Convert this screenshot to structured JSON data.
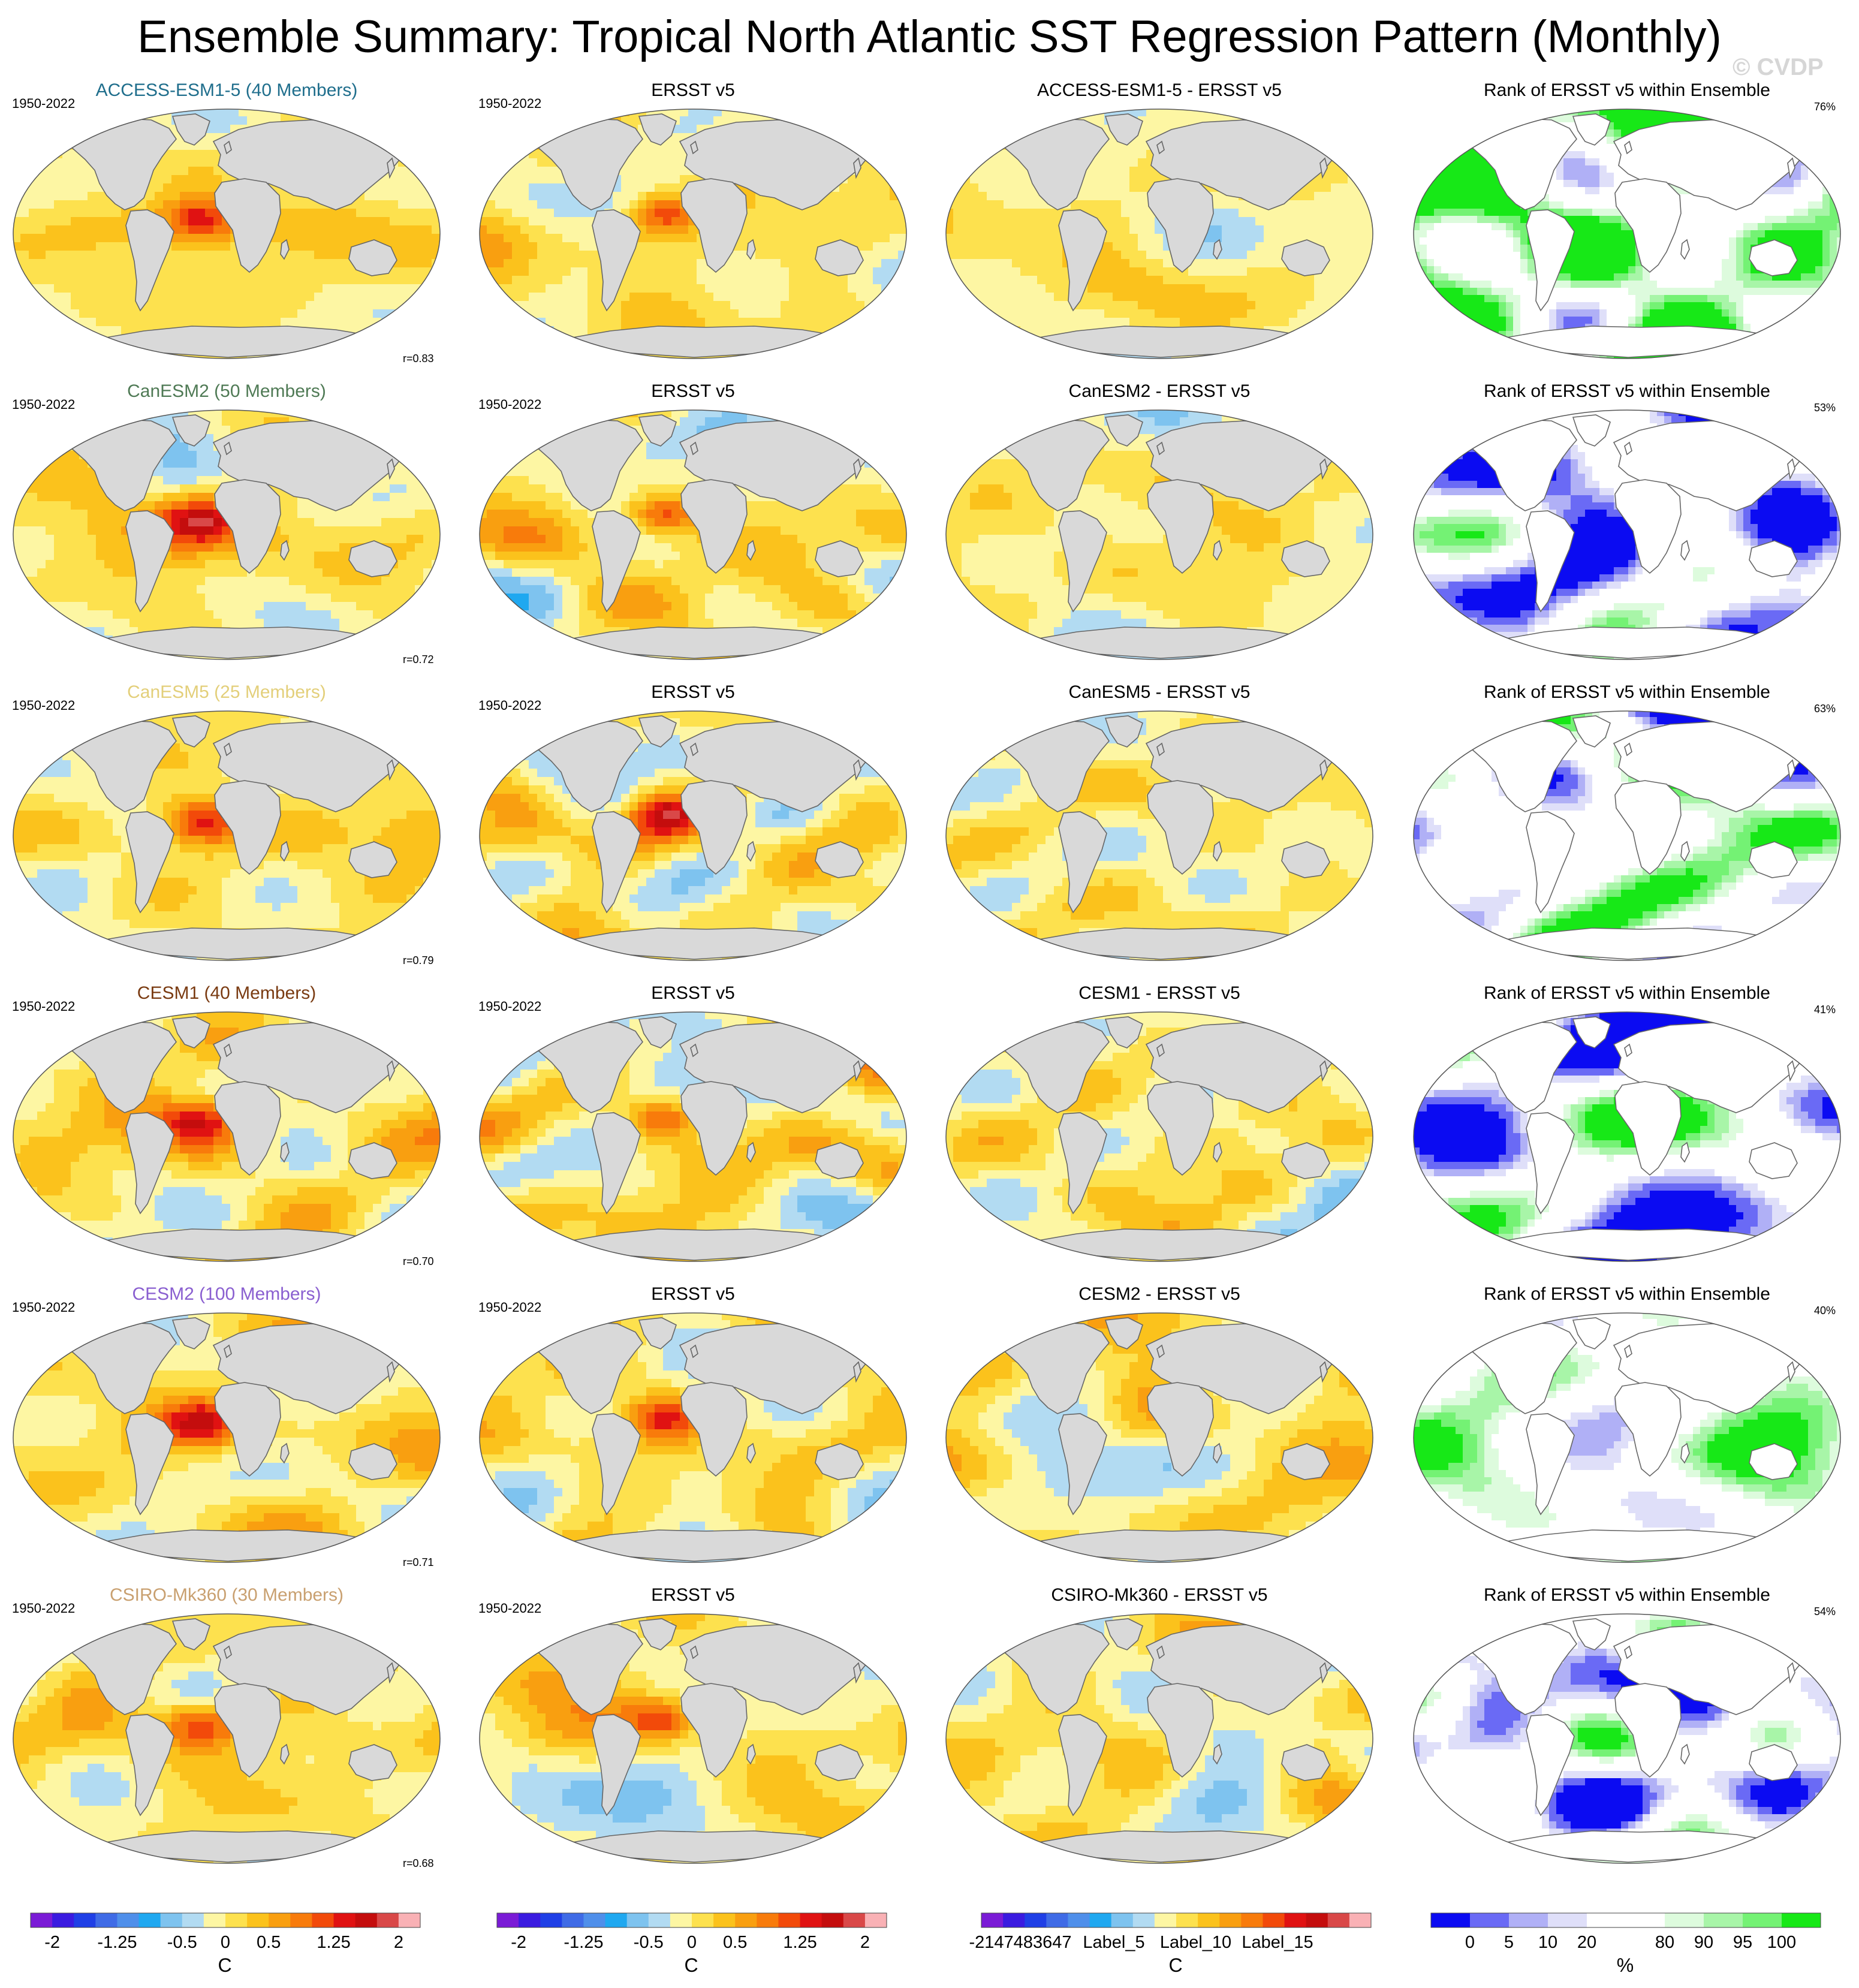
{
  "title": "Ensemble Summary: Tropical North Atlantic SST Regression Pattern (Monthly)",
  "watermark": "© CVDP",
  "column_titles": {
    "obs": "ERSST v5",
    "rank": "Rank of ERSST v5 within Ensemble"
  },
  "rows": [
    {
      "model_title": "ACCESS-ESM1-5 (40 Members)",
      "title_color": "#1f6e8c",
      "years": "1950-2022",
      "obs_years": "1950-2022",
      "r_value": "r=0.83",
      "diff_title": "ACCESS-ESM1-5 - ERSST v5",
      "rank_pct": "76%",
      "seed": 1,
      "amp": 0.45,
      "rank_bias": 0.35
    },
    {
      "model_title": "CanESM2 (50 Members)",
      "title_color": "#4f7a55",
      "years": "1950-2022",
      "obs_years": "1950-2022",
      "r_value": "r=0.72",
      "diff_title": "CanESM2 - ERSST v5",
      "rank_pct": "53%",
      "seed": 2,
      "amp": 0.6,
      "rank_bias": -0.2
    },
    {
      "model_title": "CanESM5 (25 Members)",
      "title_color": "#e3cf7a",
      "years": "1950-2022",
      "obs_years": "1950-2022",
      "r_value": "r=0.79",
      "diff_title": "CanESM5 - ERSST v5",
      "rank_pct": "63%",
      "seed": 3,
      "amp": 0.55,
      "rank_bias": 0.0
    },
    {
      "model_title": "CESM1 (40 Members)",
      "title_color": "#7a3b12",
      "years": "1950-2022",
      "obs_years": "1950-2022",
      "r_value": "r=0.70",
      "diff_title": "CESM1 - ERSST v5",
      "rank_pct": "41%",
      "seed": 4,
      "amp": 0.75,
      "rank_bias": -0.1
    },
    {
      "model_title": "CESM2 (100 Members)",
      "title_color": "#8a5fd0",
      "years": "1950-2022",
      "obs_years": "1950-2022",
      "r_value": "r=0.71",
      "diff_title": "CESM2 - ERSST v5",
      "rank_pct": "40%",
      "seed": 5,
      "amp": 0.85,
      "rank_bias": 0.1
    },
    {
      "model_title": "CSIRO-Mk360 (30 Members)",
      "title_color": "#c9a070",
      "years": "1950-2022",
      "obs_years": "1950-2022",
      "r_value": "r=0.68",
      "diff_title": "CSIRO-Mk360 - ERSST v5",
      "rank_pct": "54%",
      "seed": 6,
      "amp": 0.7,
      "rank_bias": -0.15
    }
  ],
  "colorbars": {
    "sst": {
      "colors": [
        "#7a1bd6",
        "#3a1be0",
        "#1f3fe6",
        "#3f6be6",
        "#4f8fea",
        "#1fa8f0",
        "#7ec3ef",
        "#b2dbf2",
        "#fdf6a3",
        "#fde14e",
        "#fbc21c",
        "#f99f10",
        "#f87b0b",
        "#f24a0a",
        "#e01212",
        "#c40d0d",
        "#d94848",
        "#f9b1b5"
      ],
      "labels": [
        "-2",
        "-1.25",
        "-0.5",
        "0",
        "0.5",
        "1.25",
        "2"
      ],
      "title": "C"
    },
    "diff": {
      "colors": [
        "#7a1bd6",
        "#3a1be0",
        "#1f3fe6",
        "#3f6be6",
        "#4f8fea",
        "#1fa8f0",
        "#7ec3ef",
        "#b2dbf2",
        "#fdf6a3",
        "#fde14e",
        "#fbc21c",
        "#f99f10",
        "#f87b0b",
        "#f24a0a",
        "#e01212",
        "#c40d0d",
        "#d94848",
        "#f9b1b5"
      ],
      "labels": [
        "-2147483647",
        "Label_5",
        "Label_10",
        "Label_15"
      ],
      "title": "C"
    },
    "rank": {
      "colors": [
        "#0b0bf2",
        "#6a6af5",
        "#b0b0f6",
        "#dfdff9",
        "#ffffff",
        "#ffffff",
        "#ddfbdd",
        "#a8f5a8",
        "#74f274",
        "#17e817"
      ],
      "labels": [
        "0",
        "5",
        "10",
        "20",
        "80",
        "90",
        "95",
        "100"
      ],
      "title": "%"
    }
  },
  "colors": {
    "land": "#d9d9d9",
    "coast": "#666666",
    "title_text": "#000000"
  }
}
